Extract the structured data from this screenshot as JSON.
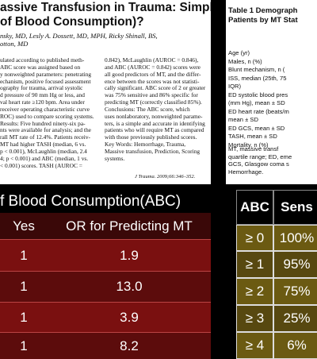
{
  "paper": {
    "title": [
      "assive Transfusion in Trauma: Simple",
      "of Blood Consumption)?"
    ],
    "authors": [
      "nsky, MD, Lesly A. Dossett, MD, MPH, Ricky Shinall, BS,",
      "otton, MD"
    ],
    "left_column": [
      "ulated according to published meth-",
      "ABC score was assigned based on",
      "y nonweighted parameters: penetrating",
      "echanism, positive focused assessment",
      "ography for trauma, arrival systolic",
      "d pressure of 90 mm Hg or less, and",
      "val heart rate ≥120 bpm. Area under",
      "receiver operating characteristic curve",
      "ROC) used to compare scoring systems.",
      "Results: Five hundred ninety-six pa-",
      "nts were available for analysis; and the",
      "rall MT rate of 12.4%. Patients receiv-",
      "MT had higher TASH (median, 6 vs.",
      "p < 0.001), McLaughlin (median, 2.4",
      "4; p < 0.001) and ABC (median, 1 vs.",
      "< 0.001) scores. TASH (AUROC ="
    ],
    "right_column": [
      "0.842), McLaughlin (AUROC = 0.846),",
      "and ABC (AUROC = 0.842) scores were",
      "all good predictors of MT, and the differ-",
      "ence between the scores was not statisti-",
      "cally significant. ABC score of 2 or greater",
      "was 75% sensitive and 86% specific for",
      "predicting MT (correctly classified 85%).",
      "Conclusions: The ABC score, which",
      "uses nonlaboratory, nonweighted parame-",
      "ters, is a simple and accurate in identifying",
      "patients who will require MT as compared",
      "with those previously published scores.",
      "Key Words: Hemorrhage, Trauma,",
      "Massive transfusion, Prediction, Scoring",
      "systems."
    ],
    "citation": "J Trauma. 2009;66:346–352."
  },
  "table1": {
    "title": [
      "Table 1 Demograph",
      "Patients by MT Stat"
    ],
    "rows": [
      "Age (yr)",
      "Males, n (%)",
      "Blunt mechanism, n (",
      "ISS, median (25th, 75",
      "IQR)",
      "ED systolic blood pres",
      "(mm Hg), mean ± SD",
      "ED heart rate (beats/m",
      "mean ± SD",
      "ED GCS, mean ± SD",
      "TASH, mean ± SD",
      "Mortality, n (%)"
    ],
    "footnote": [
      "MT, massive transf",
      "quartile range; ED, eme",
      "GCS, Glasgow coma s",
      "Hemorrhage."
    ]
  },
  "slide_title": "f Blood Consumption(ABC)",
  "or_table": {
    "header": [
      "Yes",
      "OR for Predicting MT"
    ],
    "rows": [
      [
        "1",
        "1.9"
      ],
      [
        "1",
        "13.0"
      ],
      [
        "1",
        "3.9"
      ],
      [
        "1",
        "8.2"
      ]
    ]
  },
  "abc_table": {
    "header": [
      "ABC",
      "Sens"
    ],
    "rows": [
      [
        "≥ 0",
        "100%"
      ],
      [
        "≥ 1",
        "95%"
      ],
      [
        "≥ 2",
        "75%"
      ],
      [
        "≥ 3",
        "25%"
      ],
      [
        "≥ 4",
        "6%"
      ]
    ]
  }
}
